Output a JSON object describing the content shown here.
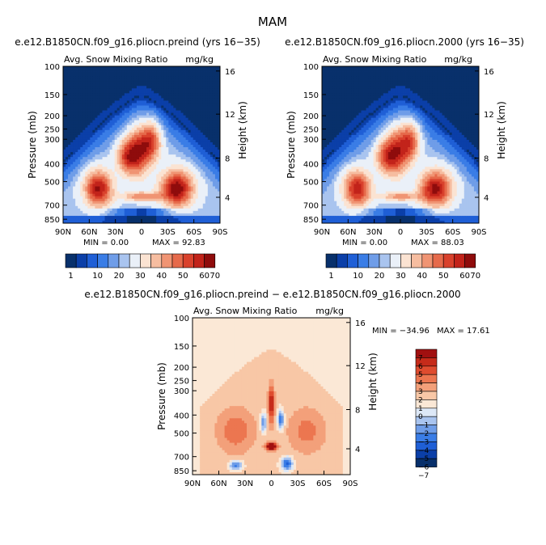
{
  "figure": {
    "title": "MAM"
  },
  "colors": {
    "positive_scale": [
      "#08306b",
      "#0b3fa8",
      "#1f5fd6",
      "#3a7de6",
      "#6f9de8",
      "#a9c4ef",
      "#eaf0f8",
      "#fbe3d2",
      "#f6bda0",
      "#f09473",
      "#e66a4b",
      "#d9412c",
      "#c2231a",
      "#8f0c0c"
    ],
    "difference_scale": [
      "#08306b",
      "#0b3fa8",
      "#1f5fd6",
      "#3a7de6",
      "#6f9de8",
      "#a9c4ef",
      "#dde8f7",
      "#fbe8d6",
      "#f8c7a6",
      "#f3a07a",
      "#ec7650",
      "#df4c2f",
      "#c62b1a",
      "#a11010"
    ]
  },
  "chart_data": [
    {
      "id": "preind",
      "type": "heatmap",
      "title": "e.e12.B1850CN.f09_g16.pliocn.preind (yrs 16−35)",
      "subtitle": "Avg. Snow Mixing Ratio",
      "units": "mg/kg",
      "xlabel": "",
      "ylabel": "Pressure (mb)",
      "ylabel_right": "Height (km)",
      "x_ticks": [
        "90N",
        "60N",
        "30N",
        "0",
        "30S",
        "60S",
        "90S"
      ],
      "y_ticks": [
        "100",
        "150",
        "200",
        "250",
        "300",
        "400",
        "500",
        "700",
        "850"
      ],
      "y_ticks_right": [
        "16",
        "12",
        "8",
        "4"
      ],
      "stats": {
        "min": "MIN =    0.00",
        "max": "MAX =   92.83"
      },
      "colorbar_labels": [
        "1",
        "10",
        "20",
        "30",
        "40",
        "50",
        "60",
        "70"
      ],
      "scale_max": 92.83
    },
    {
      "id": "pl2000",
      "type": "heatmap",
      "title": "e.e12.B1850CN.f09_g16.pliocn.2000 (yrs 16−35)",
      "subtitle": "Avg. Snow Mixing Ratio",
      "units": "mg/kg",
      "xlabel": "",
      "ylabel": "Pressure (mb)",
      "ylabel_right": "Height (km)",
      "x_ticks": [
        "90N",
        "60N",
        "30N",
        "0",
        "30S",
        "60S",
        "90S"
      ],
      "y_ticks": [
        "100",
        "150",
        "200",
        "250",
        "300",
        "400",
        "500",
        "700",
        "850"
      ],
      "y_ticks_right": [
        "16",
        "12",
        "8",
        "4"
      ],
      "stats": {
        "min": "MIN =    0.00",
        "max": "MAX =   88.03"
      },
      "colorbar_labels": [
        "1",
        "10",
        "20",
        "30",
        "40",
        "50",
        "60",
        "70"
      ],
      "scale_max": 88.03
    },
    {
      "id": "diff",
      "type": "heatmap",
      "title": "e.e12.B1850CN.f09_g16.pliocn.preind − e.e12.B1850CN.f09_g16.pliocn.2000",
      "subtitle": "Avg. Snow Mixing Ratio",
      "units": "mg/kg",
      "xlabel": "",
      "ylabel": "Pressure (mb)",
      "ylabel_right": "Height (km)",
      "x_ticks": [
        "90N",
        "60N",
        "30N",
        "0",
        "30S",
        "60S",
        "90S"
      ],
      "y_ticks": [
        "100",
        "150",
        "200",
        "250",
        "300",
        "400",
        "500",
        "700",
        "850"
      ],
      "y_ticks_right": [
        "16",
        "12",
        "8",
        "4"
      ],
      "stats": {
        "min": "MIN = −34.96",
        "max": "MAX =   17.61"
      },
      "colorbar_labels": [
        "7",
        "6",
        "5",
        "4",
        "3",
        "2",
        "1",
        "0",
        "−1",
        "−2",
        "−3",
        "−4",
        "−5",
        "−6",
        "−7"
      ],
      "range": [
        -34.96,
        17.61
      ]
    }
  ]
}
